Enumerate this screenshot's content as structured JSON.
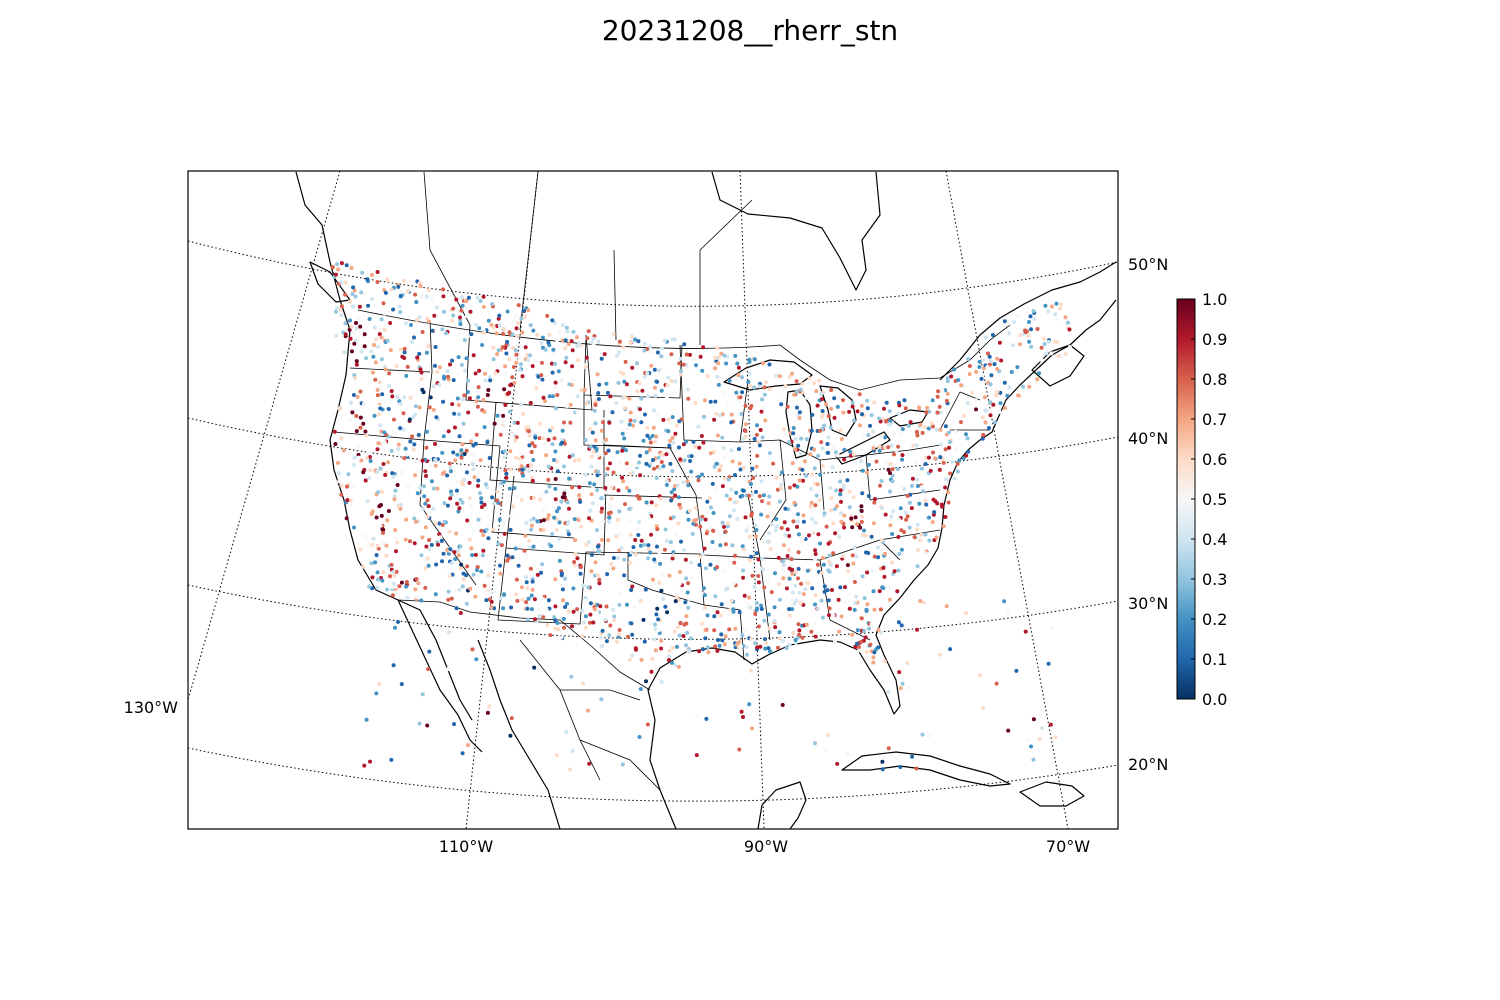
{
  "title": "20231208__rherr_stn",
  "map": {
    "projection": "lambert-conformal",
    "extent": {
      "lon_min": -125,
      "lon_max": -66,
      "lat_min": 18,
      "lat_max": 56
    },
    "parallels": [
      20,
      30,
      40,
      50
    ],
    "meridians": [
      -130,
      -110,
      -90,
      -70
    ],
    "lat_labels": [
      "20°N",
      "30°N",
      "40°N",
      "50°N"
    ],
    "lon_labels": [
      "130°W",
      "110°W",
      "90°W",
      "70°W"
    ]
  },
  "colorbar": {
    "cmap": "RdBu_r",
    "min": 0.0,
    "max": 1.0,
    "ticks": [
      "0.0",
      "0.1",
      "0.2",
      "0.3",
      "0.4",
      "0.5",
      "0.6",
      "0.7",
      "0.8",
      "0.9",
      "1.0"
    ],
    "colors": [
      "#053061",
      "#2166ac",
      "#4393c3",
      "#92c5de",
      "#d1e5f0",
      "#f7f7f7",
      "#fddbc7",
      "#f4a582",
      "#d6604d",
      "#b2182b",
      "#67001f"
    ]
  },
  "chart_data": {
    "type": "scatter",
    "title": "20231208__rherr_stn",
    "variable": "rherr_stn",
    "date": "20231208",
    "value_range": [
      0.0,
      1.0
    ],
    "hotspots": [
      {
        "lon": -122.5,
        "lat": 47.5,
        "value": 0.9
      },
      {
        "lon": -121.0,
        "lat": 38.0,
        "value": 0.85
      },
      {
        "lon": -118.5,
        "lat": 34.0,
        "value": 0.8
      },
      {
        "lon": -111.8,
        "lat": 40.7,
        "value": 0.15
      },
      {
        "lon": -105.0,
        "lat": 39.7,
        "value": 0.75
      },
      {
        "lon": -84.5,
        "lat": 35.5,
        "value": 0.95
      },
      {
        "lon": -81.6,
        "lat": 38.3,
        "value": 0.95
      },
      {
        "lon": -81.5,
        "lat": 28.0,
        "value": 0.8
      }
    ]
  }
}
